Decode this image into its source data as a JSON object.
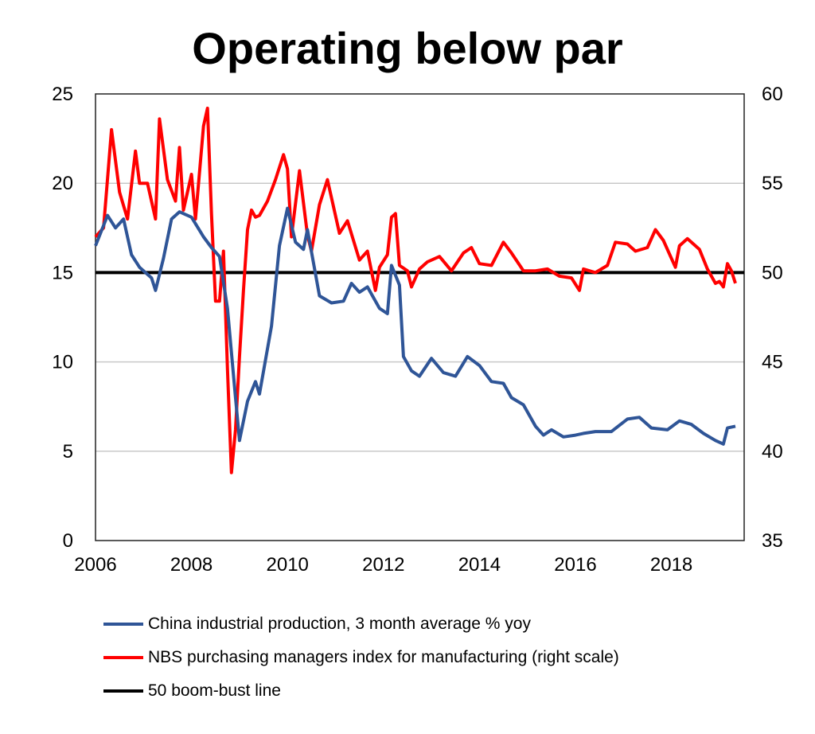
{
  "chart_data": {
    "type": "line",
    "title": "Operating below par",
    "x_ticks": [
      "2006",
      "2008",
      "2010",
      "2012",
      "2014",
      "2016",
      "2018"
    ],
    "xlim": [
      "2006-01",
      "2019-06"
    ],
    "left_axis": {
      "ylim": [
        0,
        25
      ],
      "ticks": [
        "0",
        "5",
        "10",
        "15",
        "20",
        "25"
      ]
    },
    "right_axis": {
      "ylim": [
        35,
        60
      ],
      "ticks": [
        "35",
        "40",
        "45",
        "50",
        "55",
        "60"
      ]
    },
    "grid": "horizontal",
    "legend_placement": "bottom",
    "series": [
      {
        "name": "China industrial production, 3 month average % yoy",
        "axis": "left",
        "color": "#2f5597",
        "points": [
          [
            "2006-01",
            16.5
          ],
          [
            "2006-04",
            18.2
          ],
          [
            "2006-06",
            17.5
          ],
          [
            "2006-08",
            18.0
          ],
          [
            "2006-10",
            16.0
          ],
          [
            "2006-12",
            15.3
          ],
          [
            "2007-03",
            14.7
          ],
          [
            "2007-04",
            14.0
          ],
          [
            "2007-06",
            15.8
          ],
          [
            "2007-08",
            18.0
          ],
          [
            "2007-10",
            18.4
          ],
          [
            "2008-01",
            18.1
          ],
          [
            "2008-04",
            17.0
          ],
          [
            "2008-06",
            16.4
          ],
          [
            "2008-08",
            15.9
          ],
          [
            "2008-10",
            13.0
          ],
          [
            "2008-12",
            8.0
          ],
          [
            "2009-01",
            5.6
          ],
          [
            "2009-03",
            7.8
          ],
          [
            "2009-05",
            8.9
          ],
          [
            "2009-06",
            8.2
          ],
          [
            "2009-09",
            12.0
          ],
          [
            "2009-11",
            16.5
          ],
          [
            "2010-01",
            18.6
          ],
          [
            "2010-03",
            16.7
          ],
          [
            "2010-05",
            16.3
          ],
          [
            "2010-06",
            17.4
          ],
          [
            "2010-09",
            13.7
          ],
          [
            "2010-12",
            13.3
          ],
          [
            "2011-03",
            13.4
          ],
          [
            "2011-05",
            14.4
          ],
          [
            "2011-07",
            13.9
          ],
          [
            "2011-09",
            14.2
          ],
          [
            "2011-12",
            13.0
          ],
          [
            "2012-02",
            12.7
          ],
          [
            "2012-03",
            15.4
          ],
          [
            "2012-05",
            14.3
          ],
          [
            "2012-06",
            10.3
          ],
          [
            "2012-08",
            9.5
          ],
          [
            "2012-10",
            9.2
          ],
          [
            "2013-01",
            10.2
          ],
          [
            "2013-04",
            9.4
          ],
          [
            "2013-07",
            9.2
          ],
          [
            "2013-10",
            10.3
          ],
          [
            "2014-01",
            9.8
          ],
          [
            "2014-04",
            8.9
          ],
          [
            "2014-07",
            8.8
          ],
          [
            "2014-09",
            8.0
          ],
          [
            "2014-12",
            7.6
          ],
          [
            "2015-03",
            6.4
          ],
          [
            "2015-05",
            5.9
          ],
          [
            "2015-07",
            6.2
          ],
          [
            "2015-10",
            5.8
          ],
          [
            "2016-01",
            5.9
          ],
          [
            "2016-03",
            6.0
          ],
          [
            "2016-06",
            6.1
          ],
          [
            "2016-10",
            6.1
          ],
          [
            "2017-02",
            6.8
          ],
          [
            "2017-05",
            6.9
          ],
          [
            "2017-08",
            6.3
          ],
          [
            "2017-12",
            6.2
          ],
          [
            "2018-03",
            6.7
          ],
          [
            "2018-06",
            6.5
          ],
          [
            "2018-09",
            6.0
          ],
          [
            "2018-12",
            5.6
          ],
          [
            "2019-02",
            5.4
          ],
          [
            "2019-03",
            6.3
          ],
          [
            "2019-05",
            6.4
          ]
        ]
      },
      {
        "name": "NBS purchasing managers index for manufacturing (right scale)",
        "axis": "right",
        "color": "#ff0000",
        "points": [
          [
            "2006-01",
            52.0
          ],
          [
            "2006-03",
            52.5
          ],
          [
            "2006-05",
            58.0
          ],
          [
            "2006-07",
            54.5
          ],
          [
            "2006-09",
            53.0
          ],
          [
            "2006-11",
            56.8
          ],
          [
            "2006-12",
            55.0
          ],
          [
            "2007-02",
            55.0
          ],
          [
            "2007-04",
            53.0
          ],
          [
            "2007-05",
            58.6
          ],
          [
            "2007-07",
            55.2
          ],
          [
            "2007-09",
            54.0
          ],
          [
            "2007-10",
            57.0
          ],
          [
            "2007-11",
            53.5
          ],
          [
            "2008-01",
            55.5
          ],
          [
            "2008-02",
            53.0
          ],
          [
            "2008-04",
            58.2
          ],
          [
            "2008-05",
            59.2
          ],
          [
            "2008-06",
            53.3
          ],
          [
            "2008-07",
            48.4
          ],
          [
            "2008-08",
            48.4
          ],
          [
            "2008-09",
            51.2
          ],
          [
            "2008-10",
            44.6
          ],
          [
            "2008-11",
            38.8
          ],
          [
            "2008-12",
            41.2
          ],
          [
            "2009-01",
            45.3
          ],
          [
            "2009-02",
            49.0
          ],
          [
            "2009-03",
            52.4
          ],
          [
            "2009-04",
            53.5
          ],
          [
            "2009-05",
            53.1
          ],
          [
            "2009-06",
            53.2
          ],
          [
            "2009-08",
            54.0
          ],
          [
            "2009-10",
            55.2
          ],
          [
            "2009-12",
            56.6
          ],
          [
            "2010-01",
            55.8
          ],
          [
            "2010-02",
            52.0
          ],
          [
            "2010-04",
            55.7
          ],
          [
            "2010-06",
            52.1
          ],
          [
            "2010-07",
            51.2
          ],
          [
            "2010-09",
            53.8
          ],
          [
            "2010-11",
            55.2
          ],
          [
            "2011-02",
            52.2
          ],
          [
            "2011-04",
            52.9
          ],
          [
            "2011-07",
            50.7
          ],
          [
            "2011-09",
            51.2
          ],
          [
            "2011-11",
            49.0
          ],
          [
            "2011-12",
            50.3
          ],
          [
            "2012-02",
            51.0
          ],
          [
            "2012-03",
            53.1
          ],
          [
            "2012-04",
            53.3
          ],
          [
            "2012-05",
            50.4
          ],
          [
            "2012-07",
            50.1
          ],
          [
            "2012-08",
            49.2
          ],
          [
            "2012-10",
            50.2
          ],
          [
            "2012-12",
            50.6
          ],
          [
            "2013-03",
            50.9
          ],
          [
            "2013-06",
            50.1
          ],
          [
            "2013-09",
            51.1
          ],
          [
            "2013-11",
            51.4
          ],
          [
            "2014-01",
            50.5
          ],
          [
            "2014-04",
            50.4
          ],
          [
            "2014-07",
            51.7
          ],
          [
            "2014-09",
            51.1
          ],
          [
            "2014-12",
            50.1
          ],
          [
            "2015-03",
            50.1
          ],
          [
            "2015-06",
            50.2
          ],
          [
            "2015-09",
            49.8
          ],
          [
            "2015-12",
            49.7
          ],
          [
            "2016-02",
            49.0
          ],
          [
            "2016-03",
            50.2
          ],
          [
            "2016-06",
            50.0
          ],
          [
            "2016-09",
            50.4
          ],
          [
            "2016-11",
            51.7
          ],
          [
            "2017-02",
            51.6
          ],
          [
            "2017-04",
            51.2
          ],
          [
            "2017-07",
            51.4
          ],
          [
            "2017-09",
            52.4
          ],
          [
            "2017-11",
            51.8
          ],
          [
            "2018-02",
            50.3
          ],
          [
            "2018-03",
            51.5
          ],
          [
            "2018-05",
            51.9
          ],
          [
            "2018-08",
            51.3
          ],
          [
            "2018-10",
            50.2
          ],
          [
            "2018-12",
            49.4
          ],
          [
            "2019-01",
            49.5
          ],
          [
            "2019-02",
            49.2
          ],
          [
            "2019-03",
            50.5
          ],
          [
            "2019-04",
            50.1
          ],
          [
            "2019-05",
            49.4
          ]
        ]
      },
      {
        "name": "50 boom-bust line",
        "axis": "right",
        "color": "#000000",
        "points": [
          [
            "2006-01",
            50
          ],
          [
            "2019-05",
            50
          ]
        ]
      }
    ]
  }
}
